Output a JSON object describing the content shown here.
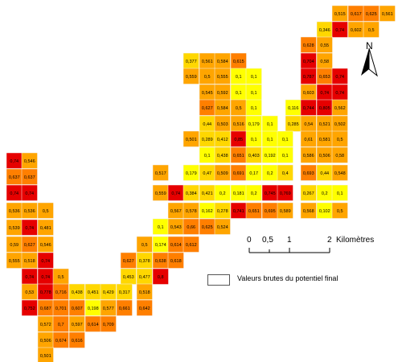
{
  "north_label": "N",
  "scale": {
    "labels": [
      "0",
      "0,5",
      "1",
      "2"
    ],
    "unit": "Kilomètres"
  },
  "legend": {
    "label": "Valeurs brutes du potentiel final"
  },
  "palette": {
    "yellow": "#ffff00",
    "orange_light": "#ffa500",
    "orange": "#ff7f00",
    "red": "#e60000"
  },
  "cells": [
    [
      "0,515",
      "#ffa500"
    ],
    [
      "0,617",
      "#ff7f00"
    ],
    [
      "0,625",
      "#ff7f00"
    ],
    [
      "0,561",
      "#ffa500"
    ],
    [
      "0,346",
      "#ffd700"
    ],
    [
      "0,74",
      "#e60000"
    ],
    [
      "0,602",
      "#ffa500"
    ],
    [
      "0,5",
      "#ffa500"
    ],
    [
      "0,628",
      "#ff7f00"
    ],
    [
      "0,55",
      "#ffa500"
    ],
    [
      "0,377",
      "#ffd700"
    ],
    [
      "0,561",
      "#ffa500"
    ],
    [
      "0,584",
      "#ffa500"
    ],
    [
      "0,615",
      "#ff7f00"
    ],
    [
      "0,704",
      "#e60000"
    ],
    [
      "0,58",
      "#ffa500"
    ],
    [
      "0,559",
      "#ffa500"
    ],
    [
      "0,5",
      "#ffa500"
    ],
    [
      "0,555",
      "#ffa500"
    ],
    [
      "0,1",
      "#ffff00"
    ],
    [
      "0,1",
      "#ffff00"
    ],
    [
      "0,787",
      "#e60000"
    ],
    [
      "0,653",
      "#ff7f00"
    ],
    [
      "0,74",
      "#e60000"
    ],
    [
      "0,545",
      "#ffa500"
    ],
    [
      "0,592",
      "#ffa500"
    ],
    [
      "0,1",
      "#ffff00"
    ],
    [
      "0,1",
      "#ffff00"
    ],
    [
      "0,603",
      "#ffa500"
    ],
    [
      "0,74",
      "#e60000"
    ],
    [
      "0,74",
      "#e60000"
    ],
    [
      "0,627",
      "#ff7f00"
    ],
    [
      "0,584",
      "#ffa500"
    ],
    [
      "0,5",
      "#ffa500"
    ],
    [
      "0,1",
      "#ffff00"
    ],
    [
      "0,116",
      "#ffff00"
    ],
    [
      "0,744",
      "#e60000"
    ],
    [
      "0,805",
      "#e60000"
    ],
    [
      "0,562",
      "#ffa500"
    ],
    [
      "0,44",
      "#ffd700"
    ],
    [
      "0,503",
      "#ffa500"
    ],
    [
      "0,516",
      "#ffa500"
    ],
    [
      "0,179",
      "#ffff00"
    ],
    [
      "0,1",
      "#ffff00"
    ],
    [
      "0,285",
      "#ffd700"
    ],
    [
      "0,54",
      "#ffa500"
    ],
    [
      "0,521",
      "#ffa500"
    ],
    [
      "0,502",
      "#ffa500"
    ],
    [
      "0,501",
      "#ffa500"
    ],
    [
      "0,289",
      "#ffd700"
    ],
    [
      "0,412",
      "#ffd700"
    ],
    [
      "0,85",
      "#e60000"
    ],
    [
      "0,1",
      "#ffff00"
    ],
    [
      "0,1",
      "#ffff00"
    ],
    [
      "0,1",
      "#ffff00"
    ],
    [
      "0,61",
      "#ffa500"
    ],
    [
      "0,581",
      "#ffa500"
    ],
    [
      "0,5",
      "#ffa500"
    ],
    [
      "0,74",
      "#e60000"
    ],
    [
      "0,546",
      "#ffa500"
    ],
    [
      "0,1",
      "#ffff00"
    ],
    [
      "0,438",
      "#ffd700"
    ],
    [
      "0,651",
      "#ff7f00"
    ],
    [
      "0,403",
      "#ffd700"
    ],
    [
      "0,192",
      "#ffff00"
    ],
    [
      "0,1",
      "#ffff00"
    ],
    [
      "0,586",
      "#ffa500"
    ],
    [
      "0,506",
      "#ffa500"
    ],
    [
      "0,58",
      "#ffa500"
    ],
    [
      "0,637",
      "#ff7f00"
    ],
    [
      "0,637",
      "#ff7f00"
    ],
    [
      "0,517",
      "#ffa500"
    ],
    [
      "0,179",
      "#ffff00"
    ],
    [
      "0,47",
      "#ffd700"
    ],
    [
      "0,509",
      "#ffa500"
    ],
    [
      "0,691",
      "#ff7f00"
    ],
    [
      "0,17",
      "#ffff00"
    ],
    [
      "0,2",
      "#ffff00"
    ],
    [
      "0,4",
      "#ffd700"
    ],
    [
      "0,693",
      "#ff7f00"
    ],
    [
      "0,44",
      "#ffd700"
    ],
    [
      "0,548",
      "#ffa500"
    ],
    [
      "0,74",
      "#e60000"
    ],
    [
      "0,74",
      "#e60000"
    ],
    [
      "0,559",
      "#ffa500"
    ],
    [
      "0,74",
      "#e60000"
    ],
    [
      "0,384",
      "#ffd700"
    ],
    [
      "0,421",
      "#ffd700"
    ],
    [
      "0,2",
      "#ffff00"
    ],
    [
      "0,181",
      "#ffff00"
    ],
    [
      "0,2",
      "#ffff00"
    ],
    [
      "0,745",
      "#e60000"
    ],
    [
      "0,769",
      "#e60000"
    ],
    [
      "0,267",
      "#ffd700"
    ],
    [
      "0,2",
      "#ffff00"
    ],
    [
      "0,1",
      "#ffff00"
    ],
    [
      "0,536",
      "#ffa500"
    ],
    [
      "0,536",
      "#ffa500"
    ],
    [
      "0,5",
      "#ffa500"
    ],
    [
      "0,567",
      "#ffa500"
    ],
    [
      "0,578",
      "#ffa500"
    ],
    [
      "0,162",
      "#ffff00"
    ],
    [
      "0,278",
      "#ffd700"
    ],
    [
      "0,741",
      "#e60000"
    ],
    [
      "0,651",
      "#ff7f00"
    ],
    [
      "0,695",
      "#ff7f00"
    ],
    [
      "0,589",
      "#ffa500"
    ],
    [
      "0,568",
      "#ffa500"
    ],
    [
      "0,102",
      "#ffff00"
    ],
    [
      "0,5",
      "#ffa500"
    ],
    [
      "0,539",
      "#ffa500"
    ],
    [
      "0,74",
      "#e60000"
    ],
    [
      "0,481",
      "#ffa500"
    ],
    [
      "0,1",
      "#ffff00"
    ],
    [
      "0,543",
      "#ffa500"
    ],
    [
      "0,66",
      "#ff7f00"
    ],
    [
      "0,625",
      "#ff7f00"
    ],
    [
      "0,524",
      "#ffa500"
    ],
    [
      "0,59",
      "#ffa500"
    ],
    [
      "0,627",
      "#ff7f00"
    ],
    [
      "0,546",
      "#ffa500"
    ],
    [
      "0,5",
      "#ffa500"
    ],
    [
      "0,174",
      "#ffff00"
    ],
    [
      "0,614",
      "#ff7f00"
    ],
    [
      "0,612",
      "#ff7f00"
    ],
    [
      "0,555",
      "#ffa500"
    ],
    [
      "0,518",
      "#ffa500"
    ],
    [
      "0,74",
      "#e60000"
    ],
    [
      "0,627",
      "#ff7f00"
    ],
    [
      "0,378",
      "#ffd700"
    ],
    [
      "0,638",
      "#ff7f00"
    ],
    [
      "0,618",
      "#ff7f00"
    ],
    [
      "0,74",
      "#e60000"
    ],
    [
      "0,74",
      "#e60000"
    ],
    [
      "0,5",
      "#ffa500"
    ],
    [
      "0,453",
      "#ffd700"
    ],
    [
      "0,477",
      "#ffd700"
    ],
    [
      "0,8",
      "#e60000"
    ],
    [
      "0,53",
      "#ffa500"
    ],
    [
      "0,778",
      "#e60000"
    ],
    [
      "0,716",
      "#ff7f00"
    ],
    [
      "0,438",
      "#ffd700"
    ],
    [
      "0,451",
      "#ffd700"
    ],
    [
      "0,429",
      "#ffd700"
    ],
    [
      "0,317",
      "#ffd700"
    ],
    [
      "0,518",
      "#ffa500"
    ],
    [
      "0,752",
      "#e60000"
    ],
    [
      "0,687",
      "#ff7f00"
    ],
    [
      "0,701",
      "#ff7f00"
    ],
    [
      "0,607",
      "#ff7f00"
    ],
    [
      "0,198",
      "#ffff00"
    ],
    [
      "0,577",
      "#ffa500"
    ],
    [
      "0,661",
      "#ff7f00"
    ],
    [
      "0,642",
      "#ff7f00"
    ],
    [
      "0,572",
      "#ffa500"
    ],
    [
      "0,7",
      "#ff7f00"
    ],
    [
      "0,597",
      "#ffa500"
    ],
    [
      "0,614",
      "#ff7f00"
    ],
    [
      "0,709",
      "#ff7f00"
    ],
    [
      "0,506",
      "#ffa500"
    ],
    [
      "0,674",
      "#ff7f00"
    ],
    [
      "0,616",
      "#ff7f00"
    ],
    [
      "0,501",
      "#ffa500"
    ]
  ]
}
